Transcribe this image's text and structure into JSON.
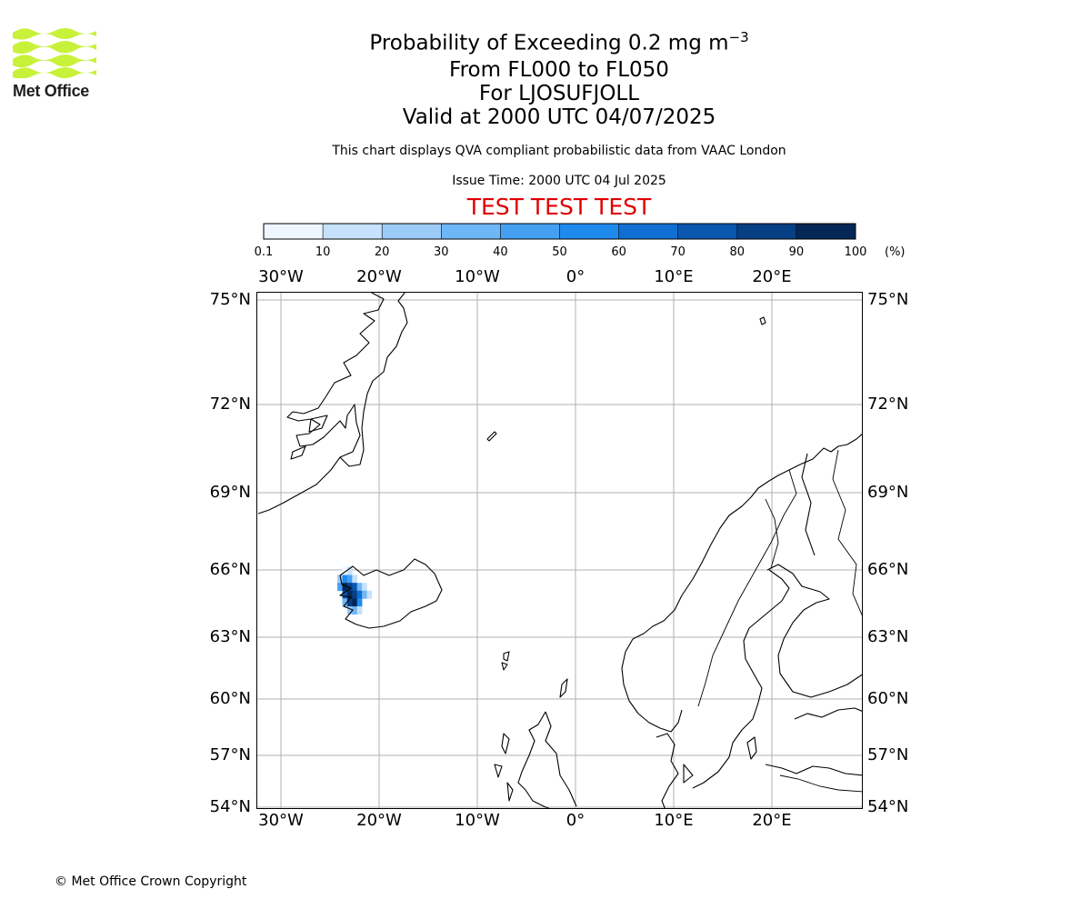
{
  "logo": {
    "text": "Met Office",
    "colors": {
      "waves": "#c8f23a",
      "text": "#1f1f1f"
    }
  },
  "header": {
    "title_main": "Probability of Exceeding 0.2 mg m",
    "title_exponent": "−3",
    "level_range": "From FL000 to FL050",
    "volcano": "For LJOSUFJOLL",
    "valid_time": "Valid at 2000 UTC 04/07/2025",
    "description": "This chart displays QVA compliant probabilistic data from VAAC London",
    "issue_time": "Issue Time: 2000 UTC 04 Jul 2025",
    "test_banner": "TEST TEST TEST",
    "test_color": "#e00000"
  },
  "colorbar": {
    "ticks": [
      "0.1",
      "10",
      "20",
      "30",
      "40",
      "50",
      "60",
      "70",
      "80",
      "90",
      "100"
    ],
    "unit": "(%)",
    "colors": [
      "#eef6ff",
      "#c6e1fb",
      "#9ccbf8",
      "#6fb6f6",
      "#45a0f2",
      "#1f8aee",
      "#0f6fd2",
      "#0a57af",
      "#073f85",
      "#042757"
    ]
  },
  "map": {
    "lon_labels": [
      "30°W",
      "20°W",
      "10°W",
      "0°",
      "10°E",
      "20°E"
    ],
    "lat_labels": [
      "75°N",
      "72°N",
      "69°N",
      "66°N",
      "63°N",
      "60°N",
      "57°N",
      "54°N"
    ],
    "gridline_color": "#b0b0b0",
    "plume_cells": [
      {
        "lon": -23.5,
        "lat": 65.95,
        "pct": 5
      },
      {
        "lon": -23.0,
        "lat": 65.95,
        "pct": 12
      },
      {
        "lon": -24.0,
        "lat": 65.6,
        "pct": 25
      },
      {
        "lon": -23.5,
        "lat": 65.6,
        "pct": 55
      },
      {
        "lon": -23.0,
        "lat": 65.6,
        "pct": 40
      },
      {
        "lon": -22.5,
        "lat": 65.6,
        "pct": 15
      },
      {
        "lon": -24.0,
        "lat": 65.25,
        "pct": 45
      },
      {
        "lon": -23.5,
        "lat": 65.25,
        "pct": 95
      },
      {
        "lon": -23.0,
        "lat": 65.25,
        "pct": 85
      },
      {
        "lon": -22.5,
        "lat": 65.25,
        "pct": 72
      },
      {
        "lon": -22.0,
        "lat": 65.25,
        "pct": 30
      },
      {
        "lon": -21.5,
        "lat": 65.25,
        "pct": 12
      },
      {
        "lon": -23.5,
        "lat": 64.9,
        "pct": 75
      },
      {
        "lon": -23.0,
        "lat": 64.9,
        "pct": 97
      },
      {
        "lon": -22.5,
        "lat": 64.9,
        "pct": 88
      },
      {
        "lon": -22.0,
        "lat": 64.9,
        "pct": 60
      },
      {
        "lon": -21.5,
        "lat": 64.9,
        "pct": 35
      },
      {
        "lon": -21.0,
        "lat": 64.9,
        "pct": 18
      },
      {
        "lon": -23.5,
        "lat": 64.55,
        "pct": 35
      },
      {
        "lon": -23.0,
        "lat": 64.55,
        "pct": 80
      },
      {
        "lon": -22.5,
        "lat": 64.55,
        "pct": 92
      },
      {
        "lon": -22.0,
        "lat": 64.55,
        "pct": 50
      },
      {
        "lon": -23.0,
        "lat": 64.2,
        "pct": 20
      },
      {
        "lon": -22.5,
        "lat": 64.2,
        "pct": 38
      },
      {
        "lon": -22.0,
        "lat": 64.2,
        "pct": 15
      }
    ]
  },
  "footer": {
    "copyright": "© Met Office Crown Copyright"
  }
}
